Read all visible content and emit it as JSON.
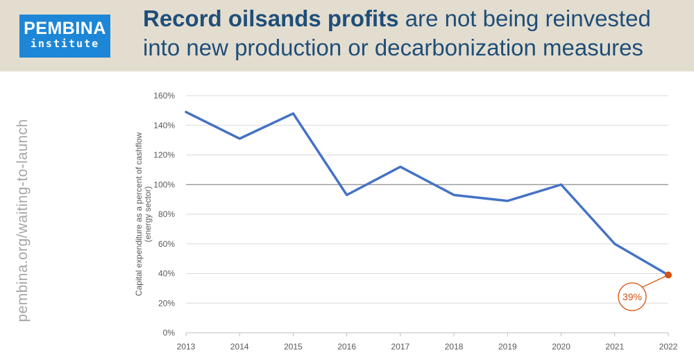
{
  "brand": {
    "name_top": "PEMBINA",
    "name_bottom": "institute"
  },
  "headline": {
    "bold_part": "Record oilsands profits",
    "rest_part": " are not being reinvested into new production or decarbonization measures"
  },
  "side_url": "pembina.org/waiting-to-launch",
  "colors": {
    "header_bg": "#e3ddd0",
    "logo_bg": "#1d86d6",
    "headline": "#1f4e78",
    "line": "#4472c4",
    "highlight": "#d4520f"
  },
  "chart_data": {
    "type": "line",
    "x": [
      "2013",
      "2014",
      "2015",
      "2016",
      "2017",
      "2018",
      "2019",
      "2020",
      "2021",
      "2022"
    ],
    "series": [
      {
        "values": [
          149,
          131,
          148,
          93,
          112,
          93,
          89,
          100,
          60,
          39
        ]
      }
    ],
    "ylabel_line1": "Capital expenditure as a percent of cashflow",
    "ylabel_line2": "(energy sector)",
    "ylim": [
      0,
      160
    ],
    "yticks": [
      0,
      20,
      40,
      60,
      80,
      100,
      120,
      140,
      160
    ],
    "ytick_labels": [
      "0%",
      "20%",
      "40%",
      "60%",
      "80%",
      "100%",
      "120%",
      "140%",
      "160%"
    ],
    "reference_line": 100,
    "grid": true,
    "annotation": {
      "category": "2022",
      "value": 39,
      "label": "39%"
    }
  }
}
